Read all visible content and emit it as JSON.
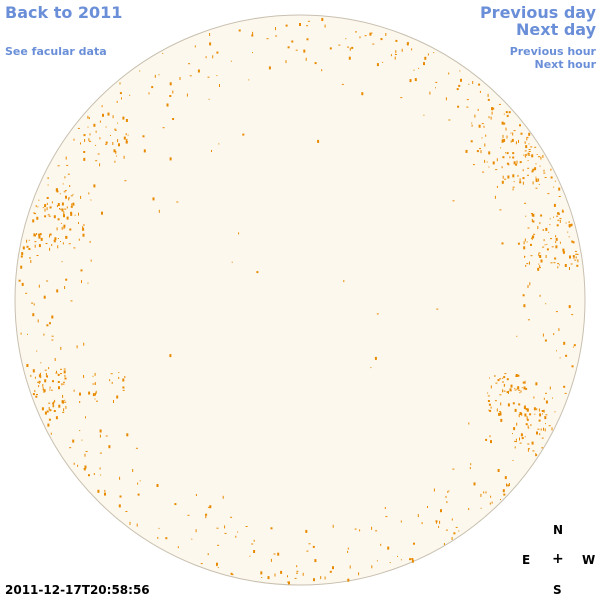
{
  "navigation": {
    "back_label": "Back to 2011",
    "facular_label": "See facular data",
    "prev_day_label": "Previous day",
    "next_day_label": "Next day",
    "prev_hour_label": "Previous hour",
    "next_hour_label": "Next hour"
  },
  "compass": {
    "north": "N",
    "east": "E",
    "center": "+",
    "west": "W",
    "south": "S"
  },
  "timestamp": "2011-12-17T20:58:56",
  "colors": {
    "link": "#6a8fd8",
    "disk_fill": "#fdf8ee",
    "disk_stroke": "#c8c0b0",
    "facula": "#e88a00"
  },
  "icons": {
    "compass_center": "plus-icon"
  }
}
